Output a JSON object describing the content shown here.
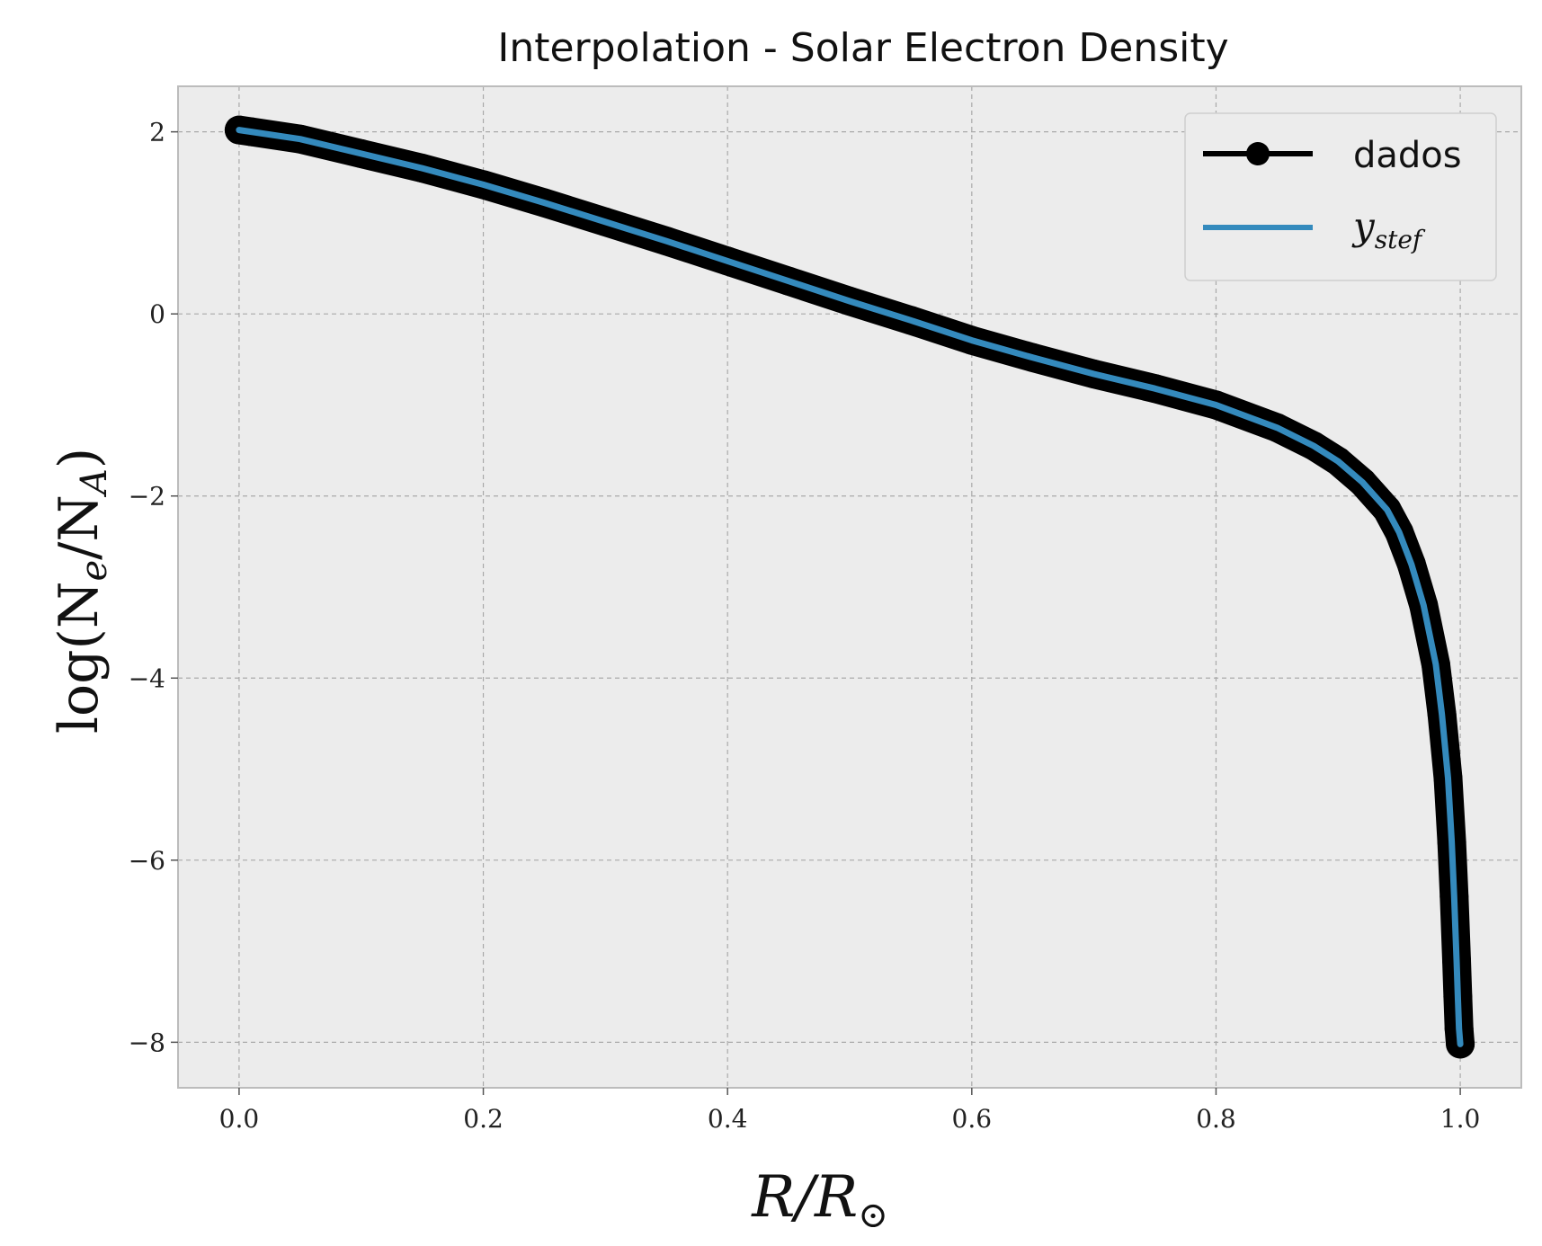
{
  "chart_data": {
    "type": "line",
    "title": "Interpolation - Solar Electron Density",
    "xlabel": {
      "base": "R/R",
      "sub": "⊙"
    },
    "ylabel": {
      "prefix": "log(N",
      "sub1": "e",
      "mid": "/N",
      "sub2": "A",
      "suffix": ")"
    },
    "xlim": [
      -0.05,
      1.05
    ],
    "ylim": [
      -8.5,
      2.5
    ],
    "x_ticks": [
      0.0,
      0.2,
      0.4,
      0.6,
      0.8,
      1.0
    ],
    "x_tick_labels": [
      "0.0",
      "0.2",
      "0.4",
      "0.6",
      "0.8",
      "1.0"
    ],
    "y_ticks": [
      2,
      0,
      -2,
      -4,
      -6,
      -8
    ],
    "y_tick_labels": [
      "2",
      "0",
      "−2",
      "−4",
      "−6",
      "−8"
    ],
    "grid": true,
    "legend_position": "top-right",
    "background": "#ececec",
    "series": [
      {
        "name": "dados",
        "style": "line+markers",
        "color": "#000000",
        "x": [
          0.0,
          0.01,
          0.05,
          0.1,
          0.15,
          0.2,
          0.25,
          0.3,
          0.35,
          0.4,
          0.45,
          0.5,
          0.55,
          0.6,
          0.65,
          0.7,
          0.75,
          0.8,
          0.85,
          0.88,
          0.9,
          0.92,
          0.94,
          0.95,
          0.96,
          0.97,
          0.98,
          0.985,
          0.99,
          0.993,
          0.995,
          0.997,
          0.998,
          0.999,
          1.0
        ],
        "y": [
          2.02,
          2.0,
          1.92,
          1.76,
          1.6,
          1.42,
          1.22,
          1.01,
          0.8,
          0.58,
          0.36,
          0.14,
          -0.07,
          -0.29,
          -0.48,
          -0.66,
          -0.82,
          -1.0,
          -1.25,
          -1.45,
          -1.62,
          -1.85,
          -2.15,
          -2.4,
          -2.75,
          -3.2,
          -3.85,
          -4.4,
          -5.1,
          -5.8,
          -6.4,
          -7.1,
          -7.5,
          -7.85,
          -8.02
        ]
      },
      {
        "name": "y_stef",
        "legend_label": {
          "base": "y",
          "sub": "stef"
        },
        "style": "line",
        "color": "#348abd",
        "x": [
          0.0,
          0.01,
          0.05,
          0.1,
          0.15,
          0.2,
          0.25,
          0.3,
          0.35,
          0.4,
          0.45,
          0.5,
          0.55,
          0.6,
          0.65,
          0.7,
          0.75,
          0.8,
          0.85,
          0.88,
          0.9,
          0.92,
          0.94,
          0.95,
          0.96,
          0.97,
          0.98,
          0.985,
          0.99,
          0.993,
          0.995,
          0.997,
          0.998,
          0.999,
          1.0
        ],
        "y": [
          2.02,
          2.0,
          1.92,
          1.76,
          1.6,
          1.42,
          1.22,
          1.01,
          0.8,
          0.58,
          0.36,
          0.14,
          -0.07,
          -0.29,
          -0.48,
          -0.66,
          -0.82,
          -1.0,
          -1.25,
          -1.45,
          -1.62,
          -1.85,
          -2.15,
          -2.4,
          -2.75,
          -3.2,
          -3.85,
          -4.4,
          -5.1,
          -5.8,
          -6.4,
          -7.1,
          -7.5,
          -7.85,
          -8.02
        ]
      }
    ]
  }
}
